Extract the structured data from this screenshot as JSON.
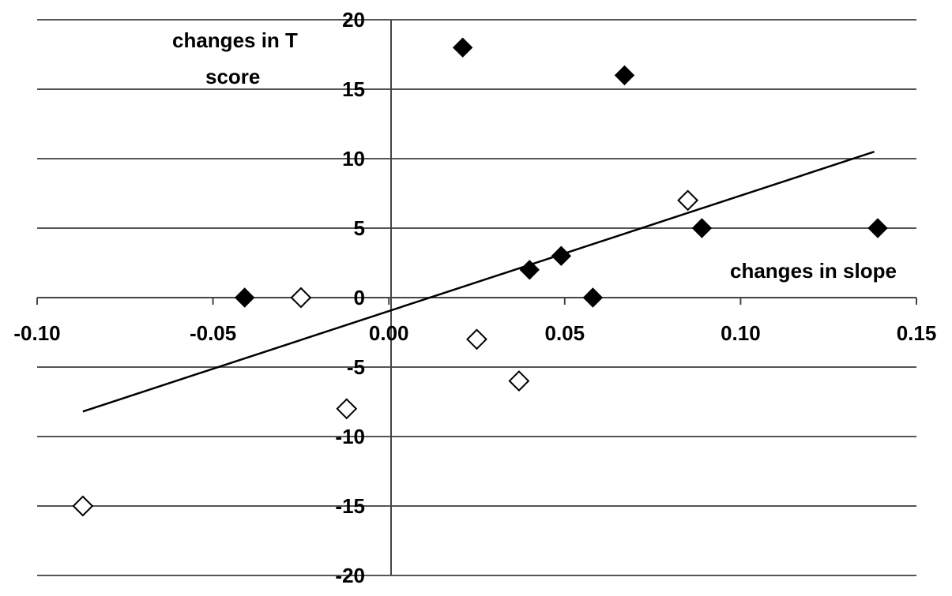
{
  "chart_data": {
    "type": "scatter",
    "xlabel": "changes  in slope",
    "ylabel_lines": [
      "changes  in T",
      "score"
    ],
    "xlim": [
      -0.1,
      0.15
    ],
    "ylim": [
      -20,
      20
    ],
    "x_ticks": [
      "-0.10",
      "-0.05",
      "0.00",
      "0.05",
      "0.10",
      "0.15"
    ],
    "y_ticks": [
      "20",
      "15",
      "10",
      "5",
      "0",
      "-5",
      "-10",
      "-15",
      "-20"
    ],
    "grid": "horizontal",
    "series": [
      {
        "marker": "filled-diamond",
        "color": "#000000",
        "points": [
          {
            "x": 0.021,
            "y": 18
          },
          {
            "x": 0.067,
            "y": 16
          },
          {
            "x": 0.04,
            "y": 2
          },
          {
            "x": 0.049,
            "y": 3
          },
          {
            "x": 0.058,
            "y": 0
          },
          {
            "x": -0.041,
            "y": 0
          },
          {
            "x": 0.089,
            "y": 5
          },
          {
            "x": 0.139,
            "y": 5
          }
        ]
      },
      {
        "marker": "open-diamond",
        "color": "#000000",
        "points": [
          {
            "x": -0.025,
            "y": 0
          },
          {
            "x": 0.085,
            "y": 7
          },
          {
            "x": 0.025,
            "y": -3
          },
          {
            "x": 0.037,
            "y": -6
          },
          {
            "x": -0.012,
            "y": -8
          },
          {
            "x": -0.087,
            "y": -15
          }
        ]
      }
    ],
    "trendline": {
      "x": [
        -0.087,
        0.138
      ],
      "y": [
        -8.2,
        10.5
      ]
    }
  }
}
